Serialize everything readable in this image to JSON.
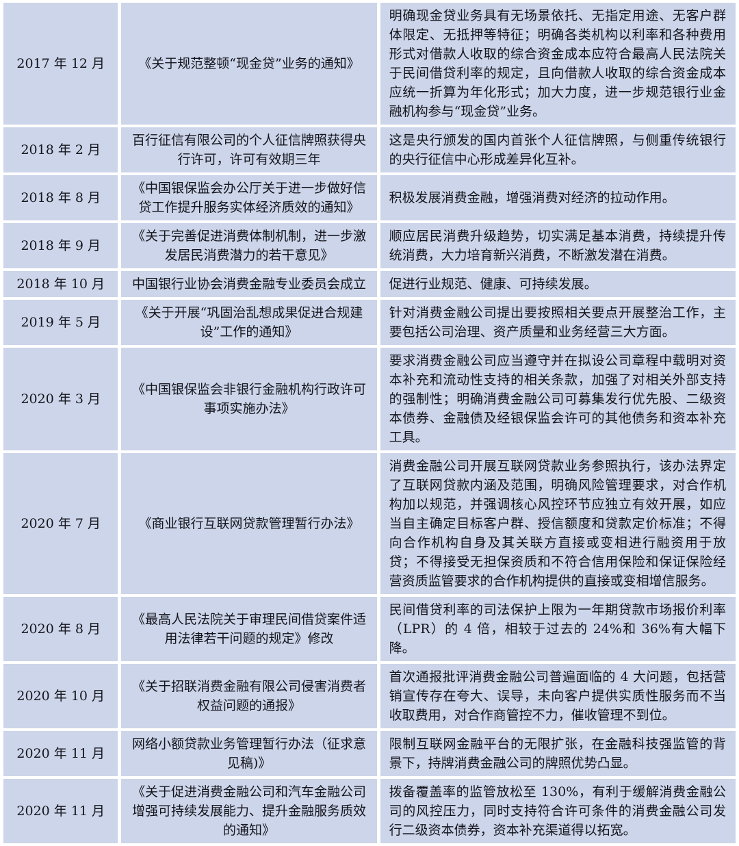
{
  "colors": {
    "cell_background": "#ccd5e9",
    "gap": "#ffffff",
    "text": "#15151d"
  },
  "rows": [
    {
      "date": "2017 年 12 月",
      "policy": "《关于规范整顿“现金贷”业务的通知》",
      "desc": "明确现金贷业务具有无场景依托、无指定用途、无客户群体限定、无抵押等特征；明确各类机构以利率和各种费用形式对借款人收取的综合资金成本应符合最高人民法院关于民间借贷利率的规定，且向借款人收取的综合资金成本应统一折算为年化形式；加大力度，进一步规范银行业金融机构参与“现金贷”业务。"
    },
    {
      "date": "2018 年 2 月",
      "policy": "百行征信有限公司的个人征信牌照获得央行许可，许可有效期三年",
      "desc": "这是央行颁发的国内首张个人征信牌照，与侧重传统银行的央行征信中心形成差异化互补。"
    },
    {
      "date": "2018 年 8 月",
      "policy": "《中国银保监会办公厅关于进一步做好信贷工作提升服务实体经济质效的通知》",
      "desc": "积极发展消费金融，增强消费对经济的拉动作用。"
    },
    {
      "date": "2018 年 9 月",
      "policy": "《关于完善促进消费体制机制，进一步激发居民消费潜力的若干意见》",
      "desc": "顺应居民消费升级趋势，切实满足基本消费，持续提升传统消费，大力培育新兴消费，不断激发潜在消费。"
    },
    {
      "date": "2018 年 10 月",
      "policy": "中国银行业协会消费金融专业委员会成立",
      "desc": "促进行业规范、健康、可持续发展。"
    },
    {
      "date": "2019 年 5 月",
      "policy": "《关于开展“巩固治乱想成果促进合规建设”工作的通知》",
      "desc": "针对消费金融公司提出要按照相关要点开展整治工作，主要包括公司治理、资产质量和业务经营三大方面。"
    },
    {
      "date": "2020 年 3 月",
      "policy": "《中国银保监会非银行金融机构行政许可事项实施办法》",
      "desc": "要求消费金融公司应当遵守并在拟设公司章程中载明对资本补充和流动性支持的相关条款，加强了对相关外部支持的强制性；明确消费金融公司可募集发行优先股、二级资本债券、金融债及经银保监会许可的其他债务和资本补充工具。"
    },
    {
      "date": "2020 年 7 月",
      "policy": "《商业银行互联网贷款管理暂行办法》",
      "desc": "消费金融公司开展互联网贷款业务参照执行，该办法界定了互联网贷款内涵及范围，明确风险管理要求，对合作机构加以规范，并强调核心风控环节应独立有效开展，如应当自主确定目标客户群、授信额度和贷款定价标准；不得向合作机构自身及其关联方直接或变相进行融资用于放贷；不得接受无担保资质和不符合信用保险和保证保险经营资质监管要求的合作机构提供的直接或变相增信服务。"
    },
    {
      "date": "2020 年 8 月",
      "policy": "《最高人民法院关于审理民间借贷案件适用法律若干问题的规定》修改",
      "desc": "民间借贷利率的司法保护上限为一年期贷款市场报价利率（LPR）的 4 倍，相较于过去的 24%和 36%有大幅下降。"
    },
    {
      "date": "2020 年 10 月",
      "policy": "《关于招联消费金融有限公司侵害消费者权益问题的通报》",
      "desc": "首次通报批评消费金融公司普遍面临的 4 大问题，包括营销宣传存在夸大、误导，未向客户提供实质性服务而不当收取费用，对合作商管控不力，催收管理不到位。"
    },
    {
      "date": "2020 年 11 月",
      "policy": "网络小额贷款业务管理暂行办法（征求意见稿)》",
      "desc": "限制互联网金融平台的无限扩张，在金融科技强监管的背景下，持牌消费金融公司的牌照优势凸显。"
    },
    {
      "date": "2020 年 11 月",
      "policy": "《关于促进消费金融公司和汽车金融公司增强可持续发展能力、提升金融服务质效的通知》",
      "desc": "拨备覆盖率的监管放松至 130%，有利于缓解消费金融公司的风控压力，同时支持符合许可条件的消费金融公司发行二级资本债券，资本补充渠道得以拓宽。"
    }
  ]
}
